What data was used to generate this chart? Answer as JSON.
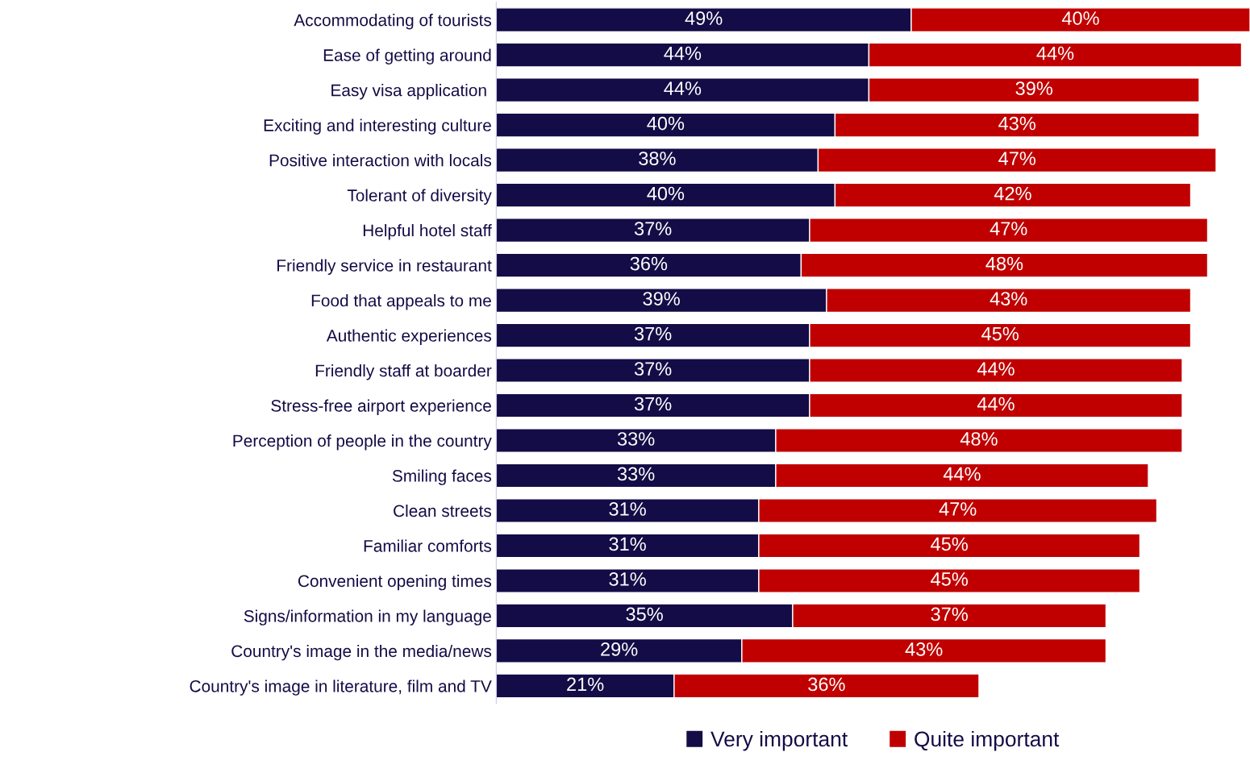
{
  "chart_data": {
    "type": "bar",
    "orientation": "horizontal",
    "stacked": true,
    "legend": "bottom",
    "grid": false,
    "categories": [
      "Accommodating of tourists",
      "Ease of getting around",
      "Easy visa application ",
      "Exciting and interesting culture",
      "Positive interaction with locals",
      "Tolerant of diversity",
      "Helpful hotel staff",
      "Friendly service in restaurant",
      "Food that appeals to me",
      "Authentic experiences",
      "Friendly staff at boarder",
      "Stress-free airport experience",
      "Perception of people in the country",
      "Smiling faces",
      "Clean streets",
      "Familiar comforts",
      "Convenient opening times",
      "Signs/information in my language",
      "Country's image in the media/news",
      "Country's image in literature, film and TV"
    ],
    "series": [
      {
        "name": "Very important",
        "color": "#140c46",
        "values": [
          49,
          44,
          44,
          40,
          38,
          40,
          37,
          36,
          39,
          37,
          37,
          37,
          33,
          33,
          31,
          31,
          31,
          35,
          29,
          21
        ],
        "value_labels": [
          "49%",
          "44%",
          "44%",
          "40%",
          "38%",
          "40%",
          "37%",
          "36%",
          "39%",
          "37%",
          "37%",
          "37%",
          "33%",
          "33%",
          "31%",
          "31%",
          "31%",
          "35%",
          "29%",
          "21%"
        ]
      },
      {
        "name": "Quite important",
        "color": "#c00000",
        "values": [
          40,
          44,
          39,
          43,
          47,
          42,
          47,
          48,
          43,
          45,
          44,
          44,
          48,
          44,
          47,
          45,
          45,
          37,
          43,
          36
        ],
        "value_labels": [
          "40%",
          "44%",
          "39%",
          "43%",
          "47%",
          "42%",
          "47%",
          "48%",
          "43%",
          "45%",
          "44%",
          "44%",
          "48%",
          "44%",
          "47%",
          "45%",
          "45%",
          "37%",
          "43%",
          "36%"
        ]
      }
    ]
  }
}
